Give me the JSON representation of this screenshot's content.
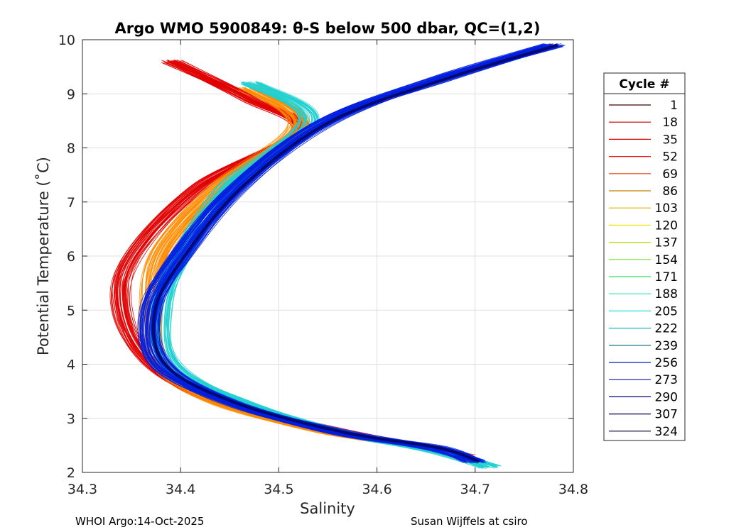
{
  "chart_data": {
    "type": "line",
    "title": "Argo WMO 5900849: θ-S below 500 dbar,  QC=(1,2)",
    "xlabel": "Salinity",
    "ylabel": "Potential Temperature (˚C)",
    "xlim": [
      34.3,
      34.8
    ],
    "ylim": [
      2,
      10
    ],
    "grid": true,
    "x_ticks": [
      "34.3",
      "34.4",
      "34.5",
      "34.6",
      "34.7",
      "34.8"
    ],
    "y_ticks": [
      "2",
      "3",
      "4",
      "5",
      "6",
      "7",
      "8",
      "9",
      "10"
    ],
    "legend": {
      "title": "Cycle #",
      "placement": "outside-right",
      "entries": [
        {
          "label": "1",
          "color": "#3a0000"
        },
        {
          "label": "18",
          "color": "#c00000"
        },
        {
          "label": "35",
          "color": "#dd0000"
        },
        {
          "label": "52",
          "color": "#f01010"
        },
        {
          "label": "69",
          "color": "#e04010"
        },
        {
          "label": "86",
          "color": "#c88000"
        },
        {
          "label": "103",
          "color": "#e0b000"
        },
        {
          "label": "120",
          "color": "#f0e000"
        },
        {
          "label": "137",
          "color": "#b0e000"
        },
        {
          "label": "154",
          "color": "#70e030"
        },
        {
          "label": "171",
          "color": "#30e060"
        },
        {
          "label": "188",
          "color": "#30e0b0"
        },
        {
          "label": "205",
          "color": "#20e0e0"
        },
        {
          "label": "222",
          "color": "#10b8d0"
        },
        {
          "label": "239",
          "color": "#006080"
        },
        {
          "label": "256",
          "color": "#0020c0"
        },
        {
          "label": "273",
          "color": "#1010a0"
        },
        {
          "label": "290",
          "color": "#000070"
        },
        {
          "label": "307",
          "color": "#000050"
        },
        {
          "label": "324",
          "color": "#000030"
        }
      ]
    },
    "series": [
      {
        "name": "red cycles (approx)",
        "color": "#e00000",
        "x": [
          34.39,
          34.47,
          34.52,
          34.42,
          34.35,
          34.34,
          34.37,
          34.44,
          34.55,
          34.64,
          34.69
        ],
        "y": [
          9.6,
          8.9,
          8.3,
          7.3,
          6.0,
          5.0,
          4.0,
          3.3,
          2.8,
          2.5,
          2.3
        ]
      },
      {
        "name": "orange cycles (approx)",
        "color": "#ff8c00",
        "x": [
          34.47,
          34.52,
          34.44,
          34.38,
          34.37,
          34.38,
          34.44,
          34.55,
          34.65,
          34.7
        ],
        "y": [
          9.1,
          8.4,
          7.3,
          6.1,
          5.0,
          4.0,
          3.3,
          2.75,
          2.45,
          2.2
        ]
      },
      {
        "name": "green/cyan cycles (approx)",
        "color": "#20d0d0",
        "x": [
          34.47,
          34.53,
          34.45,
          34.4,
          34.38,
          34.39,
          34.46,
          34.57,
          34.66,
          34.715
        ],
        "y": [
          9.2,
          8.5,
          7.3,
          6.0,
          5.0,
          4.0,
          3.3,
          2.7,
          2.4,
          2.1
        ]
      },
      {
        "name": "blue cycles (approx)",
        "color": "#0020e0",
        "x": [
          34.78,
          34.67,
          34.55,
          34.46,
          34.4,
          34.37,
          34.38,
          34.45,
          34.56,
          34.66,
          34.7
        ],
        "y": [
          9.9,
          9.3,
          8.5,
          7.3,
          6.0,
          5.0,
          4.0,
          3.3,
          2.75,
          2.45,
          2.2
        ]
      }
    ]
  },
  "footer": {
    "left": "WHOI Argo:14-Oct-2025",
    "right": "Susan Wijffels at csiro"
  }
}
